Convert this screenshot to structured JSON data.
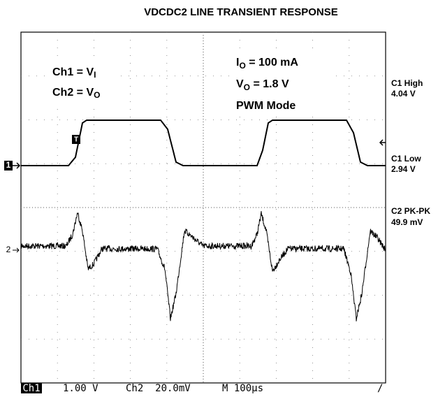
{
  "title": "VDCDC2 LINE TRANSIENT RESPONSE",
  "channel_labels": [
    {
      "label": "Ch1 = V",
      "sub": "I"
    },
    {
      "label": "Ch2 = V",
      "sub": "O"
    }
  ],
  "conditions": [
    {
      "label": "I",
      "sub": "O",
      "rest": " = 100 mA"
    },
    {
      "label": "V",
      "sub": "O",
      "rest": " = 1.8 V"
    },
    {
      "label": "PWM Mode"
    }
  ],
  "measurements": [
    {
      "name": "C1 High",
      "value": "4.04 V"
    },
    {
      "name": "C1 Low",
      "value": "2.94 V"
    },
    {
      "name": "C2 PK-PK",
      "value": "49.9 mV"
    }
  ],
  "markers": {
    "ch1": "1",
    "ch2": "2",
    "trigger": "T"
  },
  "readout": {
    "ch1": "Ch1",
    "ch1_scale": "1.00 V",
    "ch2": "Ch2  20.0mV",
    "time": "M 100µs",
    "trigger": "/"
  }
}
